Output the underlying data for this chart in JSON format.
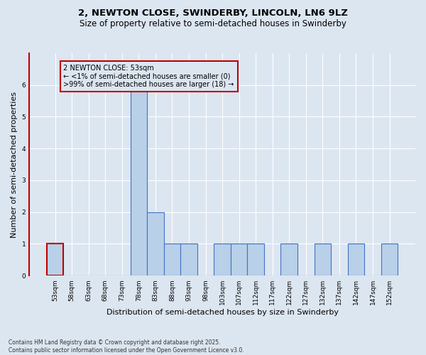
{
  "title_line1": "2, NEWTON CLOSE, SWINDERBY, LINCOLN, LN6 9LZ",
  "title_line2": "Size of property relative to semi-detached houses in Swinderby",
  "xlabel": "Distribution of semi-detached houses by size in Swinderby",
  "ylabel": "Number of semi-detached properties",
  "footnote": "Contains HM Land Registry data © Crown copyright and database right 2025.\nContains public sector information licensed under the Open Government Licence v3.0.",
  "bin_labels": [
    "53sqm",
    "58sqm",
    "63sqm",
    "68sqm",
    "73sqm",
    "78sqm",
    "83sqm",
    "88sqm",
    "93sqm",
    "98sqm",
    "103sqm",
    "107sqm",
    "112sqm",
    "117sqm",
    "122sqm",
    "127sqm",
    "132sqm",
    "137sqm",
    "142sqm",
    "147sqm",
    "152sqm"
  ],
  "bar_values": [
    1,
    0,
    0,
    0,
    0,
    6,
    2,
    1,
    1,
    0,
    1,
    1,
    1,
    0,
    1,
    0,
    1,
    0,
    1,
    0,
    1
  ],
  "bar_color": "#b8d0e8",
  "bar_edge_color": "#4472c4",
  "highlight_bar_index": 0,
  "highlight_edge_color": "#c00000",
  "annotation_text": "2 NEWTON CLOSE: 53sqm\n← <1% of semi-detached houses are smaller (0)\n>99% of semi-detached houses are larger (18) →",
  "annotation_box_edge": "#c00000",
  "background_color": "#dce6f1",
  "ylim": [
    0,
    7
  ],
  "yticks": [
    0,
    1,
    2,
    3,
    4,
    5,
    6
  ],
  "grid_color": "#ffffff",
  "title_fontsize": 9.5,
  "subtitle_fontsize": 8.5,
  "ylabel_fontsize": 8,
  "xlabel_fontsize": 8,
  "tick_fontsize": 6.5,
  "annotation_fontsize": 7,
  "footnote_fontsize": 5.5
}
